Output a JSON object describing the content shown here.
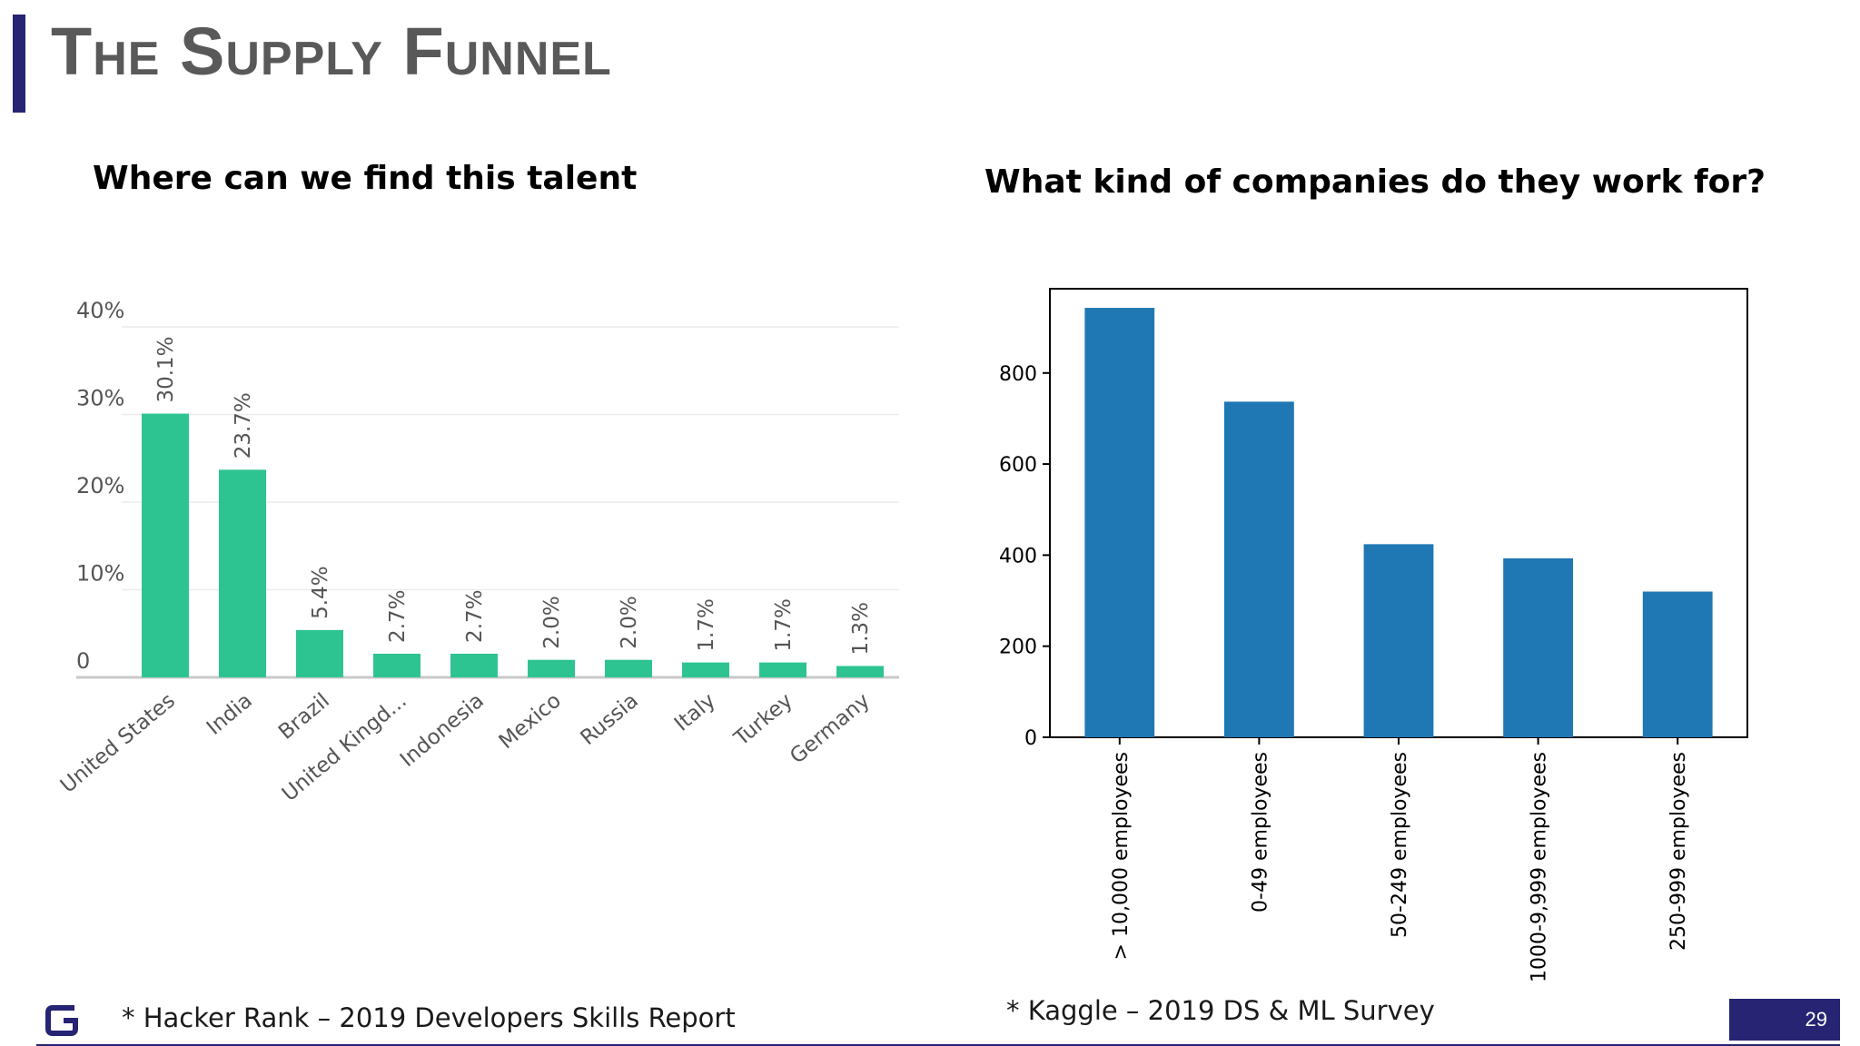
{
  "slide": {
    "title": "The Supply Funnel",
    "page_number": "29",
    "accent_color": "#262473"
  },
  "left": {
    "title": "Where can we find this talent",
    "source": "* Hacker Rank – 2019 Developers Skills Report"
  },
  "right": {
    "title": "What kind of companies do they work for?",
    "source": "* Kaggle – 2019 DS & ML Survey"
  },
  "logo": {
    "icon": "g-logo-icon"
  },
  "chart_data": [
    {
      "type": "bar",
      "categories": [
        "United States",
        "India",
        "Brazil",
        "United Kingd...",
        "Indonesia",
        "Mexico",
        "Russia",
        "Italy",
        "Turkey",
        "Germany"
      ],
      "values": [
        30.1,
        23.7,
        5.4,
        2.7,
        2.7,
        2.0,
        2.0,
        1.7,
        1.7,
        1.3
      ],
      "data_labels": [
        "30.1%",
        "23.7%",
        "5.4%",
        "2.7%",
        "2.7%",
        "2.0%",
        "2.0%",
        "1.7%",
        "1.7%",
        "1.3%"
      ],
      "yticks": [
        0,
        10,
        20,
        30,
        40
      ],
      "ytick_labels": [
        "0",
        "10%",
        "20%",
        "30%",
        "40%"
      ],
      "ylim": [
        0,
        40
      ],
      "grid": true,
      "color": "#2ec492",
      "xlabel": "",
      "ylabel": ""
    },
    {
      "type": "bar",
      "categories": [
        "> 10,000 employees",
        "0-49 employees",
        "50-249 employees",
        "1000-9,999 employees",
        "250-999 employees"
      ],
      "values": [
        943,
        737,
        424,
        393,
        320
      ],
      "yticks": [
        0,
        200,
        400,
        600,
        800
      ],
      "ylim": [
        0,
        985
      ],
      "grid": false,
      "color": "#1f77b4",
      "xlabel": "",
      "ylabel": ""
    }
  ]
}
